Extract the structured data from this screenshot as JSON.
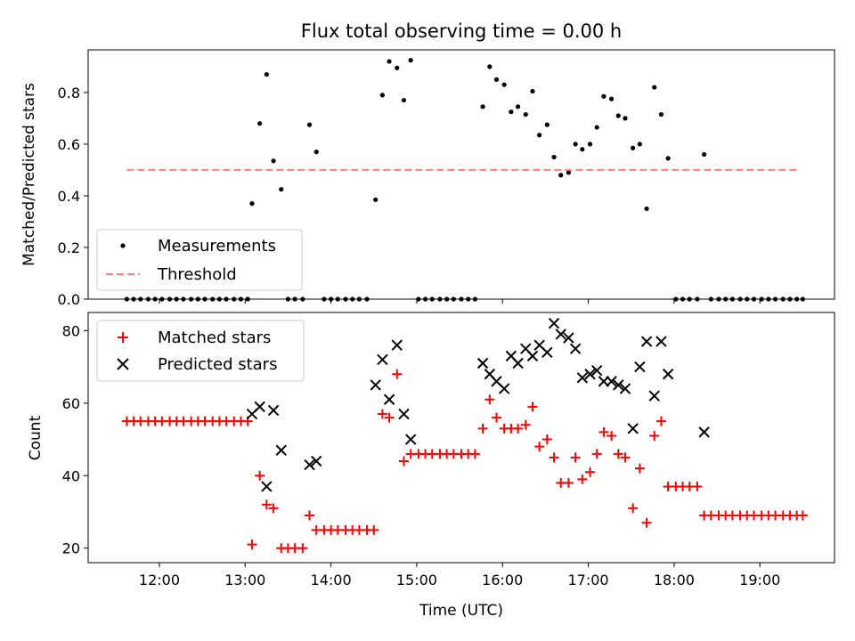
{
  "chart_data": [
    {
      "type": "scatter",
      "title": "Flux total observing time = 0.00 h",
      "xlabel": "",
      "ylabel": "Matched/Predicted stars",
      "xlim": [
        11.17,
        19.87
      ],
      "ylim": [
        0.0,
        0.965
      ],
      "yticks": [
        0.0,
        0.2,
        0.4,
        0.6,
        0.8
      ],
      "ytick_labels": [
        "0.0",
        "0.2",
        "0.4",
        "0.6",
        "0.8"
      ],
      "legend_position": "lower-left",
      "series": [
        {
          "name": "Measurements",
          "kind": "scatter",
          "color": "#000000",
          "points": [
            [
              11.62,
              0
            ],
            [
              11.7,
              0
            ],
            [
              11.78,
              0
            ],
            [
              11.87,
              0
            ],
            [
              11.95,
              0
            ],
            [
              12.03,
              0
            ],
            [
              12.12,
              0
            ],
            [
              12.2,
              0
            ],
            [
              12.28,
              0
            ],
            [
              12.37,
              0
            ],
            [
              12.45,
              0
            ],
            [
              12.53,
              0
            ],
            [
              12.62,
              0
            ],
            [
              12.7,
              0
            ],
            [
              12.78,
              0
            ],
            [
              12.87,
              0
            ],
            [
              12.95,
              0
            ],
            [
              13.03,
              0
            ],
            [
              13.08,
              0.37
            ],
            [
              13.17,
              0.68
            ],
            [
              13.25,
              0.87
            ],
            [
              13.33,
              0.535
            ],
            [
              13.42,
              0.425
            ],
            [
              13.5,
              0
            ],
            [
              13.58,
              0
            ],
            [
              13.67,
              0
            ],
            [
              13.75,
              0.675
            ],
            [
              13.83,
              0.57
            ],
            [
              13.92,
              0
            ],
            [
              14.0,
              0
            ],
            [
              14.08,
              0
            ],
            [
              14.17,
              0
            ],
            [
              14.25,
              0
            ],
            [
              14.33,
              0
            ],
            [
              14.42,
              0
            ],
            [
              14.52,
              0.385
            ],
            [
              14.6,
              0.79
            ],
            [
              14.68,
              0.92
            ],
            [
              14.77,
              0.895
            ],
            [
              14.85,
              0.77
            ],
            [
              14.93,
              0.925
            ],
            [
              15.02,
              0
            ],
            [
              15.1,
              0
            ],
            [
              15.18,
              0
            ],
            [
              15.27,
              0
            ],
            [
              15.35,
              0
            ],
            [
              15.43,
              0
            ],
            [
              15.52,
              0
            ],
            [
              15.6,
              0
            ],
            [
              15.68,
              0
            ],
            [
              15.77,
              0.745
            ],
            [
              15.85,
              0.9
            ],
            [
              15.93,
              0.85
            ],
            [
              16.02,
              0.83
            ],
            [
              16.1,
              0.725
            ],
            [
              16.18,
              0.745
            ],
            [
              16.27,
              0.715
            ],
            [
              16.35,
              0.805
            ],
            [
              16.43,
              0.635
            ],
            [
              16.52,
              0.675
            ],
            [
              16.6,
              0.55
            ],
            [
              16.68,
              0.48
            ],
            [
              16.77,
              0.49
            ],
            [
              16.85,
              0.6
            ],
            [
              16.93,
              0.58
            ],
            [
              17.02,
              0.6
            ],
            [
              17.1,
              0.665
            ],
            [
              17.18,
              0.785
            ],
            [
              17.27,
              0.775
            ],
            [
              17.35,
              0.71
            ],
            [
              17.43,
              0.7
            ],
            [
              17.52,
              0.585
            ],
            [
              17.6,
              0.6
            ],
            [
              17.68,
              0.35
            ],
            [
              17.77,
              0.82
            ],
            [
              17.85,
              0.715
            ],
            [
              17.93,
              0.545
            ],
            [
              18.02,
              0
            ],
            [
              18.1,
              0
            ],
            [
              18.18,
              0
            ],
            [
              18.27,
              0
            ],
            [
              18.35,
              0.56
            ],
            [
              18.43,
              0
            ],
            [
              18.52,
              0
            ],
            [
              18.6,
              0
            ],
            [
              18.68,
              0
            ],
            [
              18.77,
              0
            ],
            [
              18.85,
              0
            ],
            [
              18.93,
              0
            ],
            [
              19.02,
              0
            ],
            [
              19.1,
              0
            ],
            [
              19.18,
              0
            ],
            [
              19.27,
              0
            ],
            [
              19.35,
              0
            ],
            [
              19.43,
              0
            ],
            [
              19.5,
              0
            ]
          ]
        },
        {
          "name": "Threshold",
          "kind": "line",
          "style": "dashed",
          "color": "#ff7f7f",
          "x": [
            11.62,
            19.43
          ],
          "y": [
            0.5,
            0.5
          ]
        }
      ]
    },
    {
      "type": "scatter",
      "title": "",
      "xlabel": "Time (UTC)",
      "ylabel": "Count",
      "xlim": [
        11.17,
        19.87
      ],
      "ylim": [
        16.0,
        85.0
      ],
      "yticks": [
        20,
        40,
        60,
        80
      ],
      "ytick_labels": [
        "20",
        "40",
        "60",
        "80"
      ],
      "xticks": [
        12,
        13,
        14,
        15,
        16,
        17,
        18,
        19
      ],
      "xtick_labels": [
        "12:00",
        "13:00",
        "14:00",
        "15:00",
        "16:00",
        "17:00",
        "18:00",
        "19:00"
      ],
      "legend_position": "top-left",
      "series": [
        {
          "name": "Matched stars",
          "kind": "scatter",
          "marker": "plus",
          "color": "#ff0000",
          "points": [
            [
              11.62,
              55
            ],
            [
              11.7,
              55
            ],
            [
              11.78,
              55
            ],
            [
              11.87,
              55
            ],
            [
              11.95,
              55
            ],
            [
              12.03,
              55
            ],
            [
              12.12,
              55
            ],
            [
              12.2,
              55
            ],
            [
              12.28,
              55
            ],
            [
              12.37,
              55
            ],
            [
              12.45,
              55
            ],
            [
              12.53,
              55
            ],
            [
              12.62,
              55
            ],
            [
              12.7,
              55
            ],
            [
              12.78,
              55
            ],
            [
              12.87,
              55
            ],
            [
              12.95,
              55
            ],
            [
              13.03,
              55
            ],
            [
              13.08,
              21
            ],
            [
              13.17,
              40
            ],
            [
              13.25,
              32
            ],
            [
              13.33,
              31
            ],
            [
              13.42,
              20
            ],
            [
              13.5,
              20
            ],
            [
              13.58,
              20
            ],
            [
              13.67,
              20
            ],
            [
              13.75,
              29
            ],
            [
              13.83,
              25
            ],
            [
              13.92,
              25
            ],
            [
              14.0,
              25
            ],
            [
              14.08,
              25
            ],
            [
              14.17,
              25
            ],
            [
              14.25,
              25
            ],
            [
              14.33,
              25
            ],
            [
              14.42,
              25
            ],
            [
              14.5,
              25
            ],
            [
              14.6,
              57
            ],
            [
              14.68,
              56
            ],
            [
              14.77,
              68
            ],
            [
              14.85,
              44
            ],
            [
              14.93,
              46
            ],
            [
              15.02,
              46
            ],
            [
              15.1,
              46
            ],
            [
              15.18,
              46
            ],
            [
              15.27,
              46
            ],
            [
              15.35,
              46
            ],
            [
              15.43,
              46
            ],
            [
              15.52,
              46
            ],
            [
              15.6,
              46
            ],
            [
              15.68,
              46
            ],
            [
              15.77,
              53
            ],
            [
              15.85,
              61
            ],
            [
              15.93,
              56
            ],
            [
              16.02,
              53
            ],
            [
              16.1,
              53
            ],
            [
              16.18,
              53
            ],
            [
              16.27,
              54
            ],
            [
              16.35,
              59
            ],
            [
              16.43,
              48
            ],
            [
              16.52,
              50
            ],
            [
              16.6,
              45
            ],
            [
              16.68,
              38
            ],
            [
              16.77,
              38
            ],
            [
              16.85,
              45
            ],
            [
              16.93,
              39
            ],
            [
              17.02,
              41
            ],
            [
              17.1,
              46
            ],
            [
              17.18,
              52
            ],
            [
              17.27,
              51
            ],
            [
              17.35,
              46
            ],
            [
              17.43,
              45
            ],
            [
              17.52,
              31
            ],
            [
              17.6,
              42
            ],
            [
              17.68,
              27
            ],
            [
              17.77,
              51
            ],
            [
              17.85,
              55
            ],
            [
              17.93,
              37
            ],
            [
              18.02,
              37
            ],
            [
              18.1,
              37
            ],
            [
              18.18,
              37
            ],
            [
              18.27,
              37
            ],
            [
              18.35,
              29
            ],
            [
              18.43,
              29
            ],
            [
              18.52,
              29
            ],
            [
              18.6,
              29
            ],
            [
              18.68,
              29
            ],
            [
              18.77,
              29
            ],
            [
              18.85,
              29
            ],
            [
              18.93,
              29
            ],
            [
              19.02,
              29
            ],
            [
              19.1,
              29
            ],
            [
              19.18,
              29
            ],
            [
              19.27,
              29
            ],
            [
              19.35,
              29
            ],
            [
              19.43,
              29
            ],
            [
              19.5,
              29
            ]
          ]
        },
        {
          "name": "Predicted stars",
          "kind": "scatter",
          "marker": "x",
          "color": "#000000",
          "points": [
            [
              13.08,
              57
            ],
            [
              13.17,
              59
            ],
            [
              13.25,
              37
            ],
            [
              13.33,
              58
            ],
            [
              13.42,
              47
            ],
            [
              13.75,
              43
            ],
            [
              13.83,
              44
            ],
            [
              14.52,
              65
            ],
            [
              14.6,
              72
            ],
            [
              14.68,
              61
            ],
            [
              14.77,
              76
            ],
            [
              14.85,
              57
            ],
            [
              14.93,
              50
            ],
            [
              15.77,
              71
            ],
            [
              15.85,
              68
            ],
            [
              15.93,
              66
            ],
            [
              16.02,
              64
            ],
            [
              16.1,
              73
            ],
            [
              16.18,
              71
            ],
            [
              16.27,
              75
            ],
            [
              16.35,
              73
            ],
            [
              16.43,
              76
            ],
            [
              16.52,
              74
            ],
            [
              16.6,
              82
            ],
            [
              16.68,
              79
            ],
            [
              16.77,
              78
            ],
            [
              16.85,
              75
            ],
            [
              16.93,
              67
            ],
            [
              17.02,
              68
            ],
            [
              17.1,
              69
            ],
            [
              17.18,
              66
            ],
            [
              17.27,
              66
            ],
            [
              17.35,
              65
            ],
            [
              17.43,
              64
            ],
            [
              17.52,
              53
            ],
            [
              17.6,
              70
            ],
            [
              17.68,
              77
            ],
            [
              17.77,
              62
            ],
            [
              17.85,
              77
            ],
            [
              17.93,
              68
            ],
            [
              18.35,
              52
            ]
          ]
        }
      ]
    }
  ]
}
